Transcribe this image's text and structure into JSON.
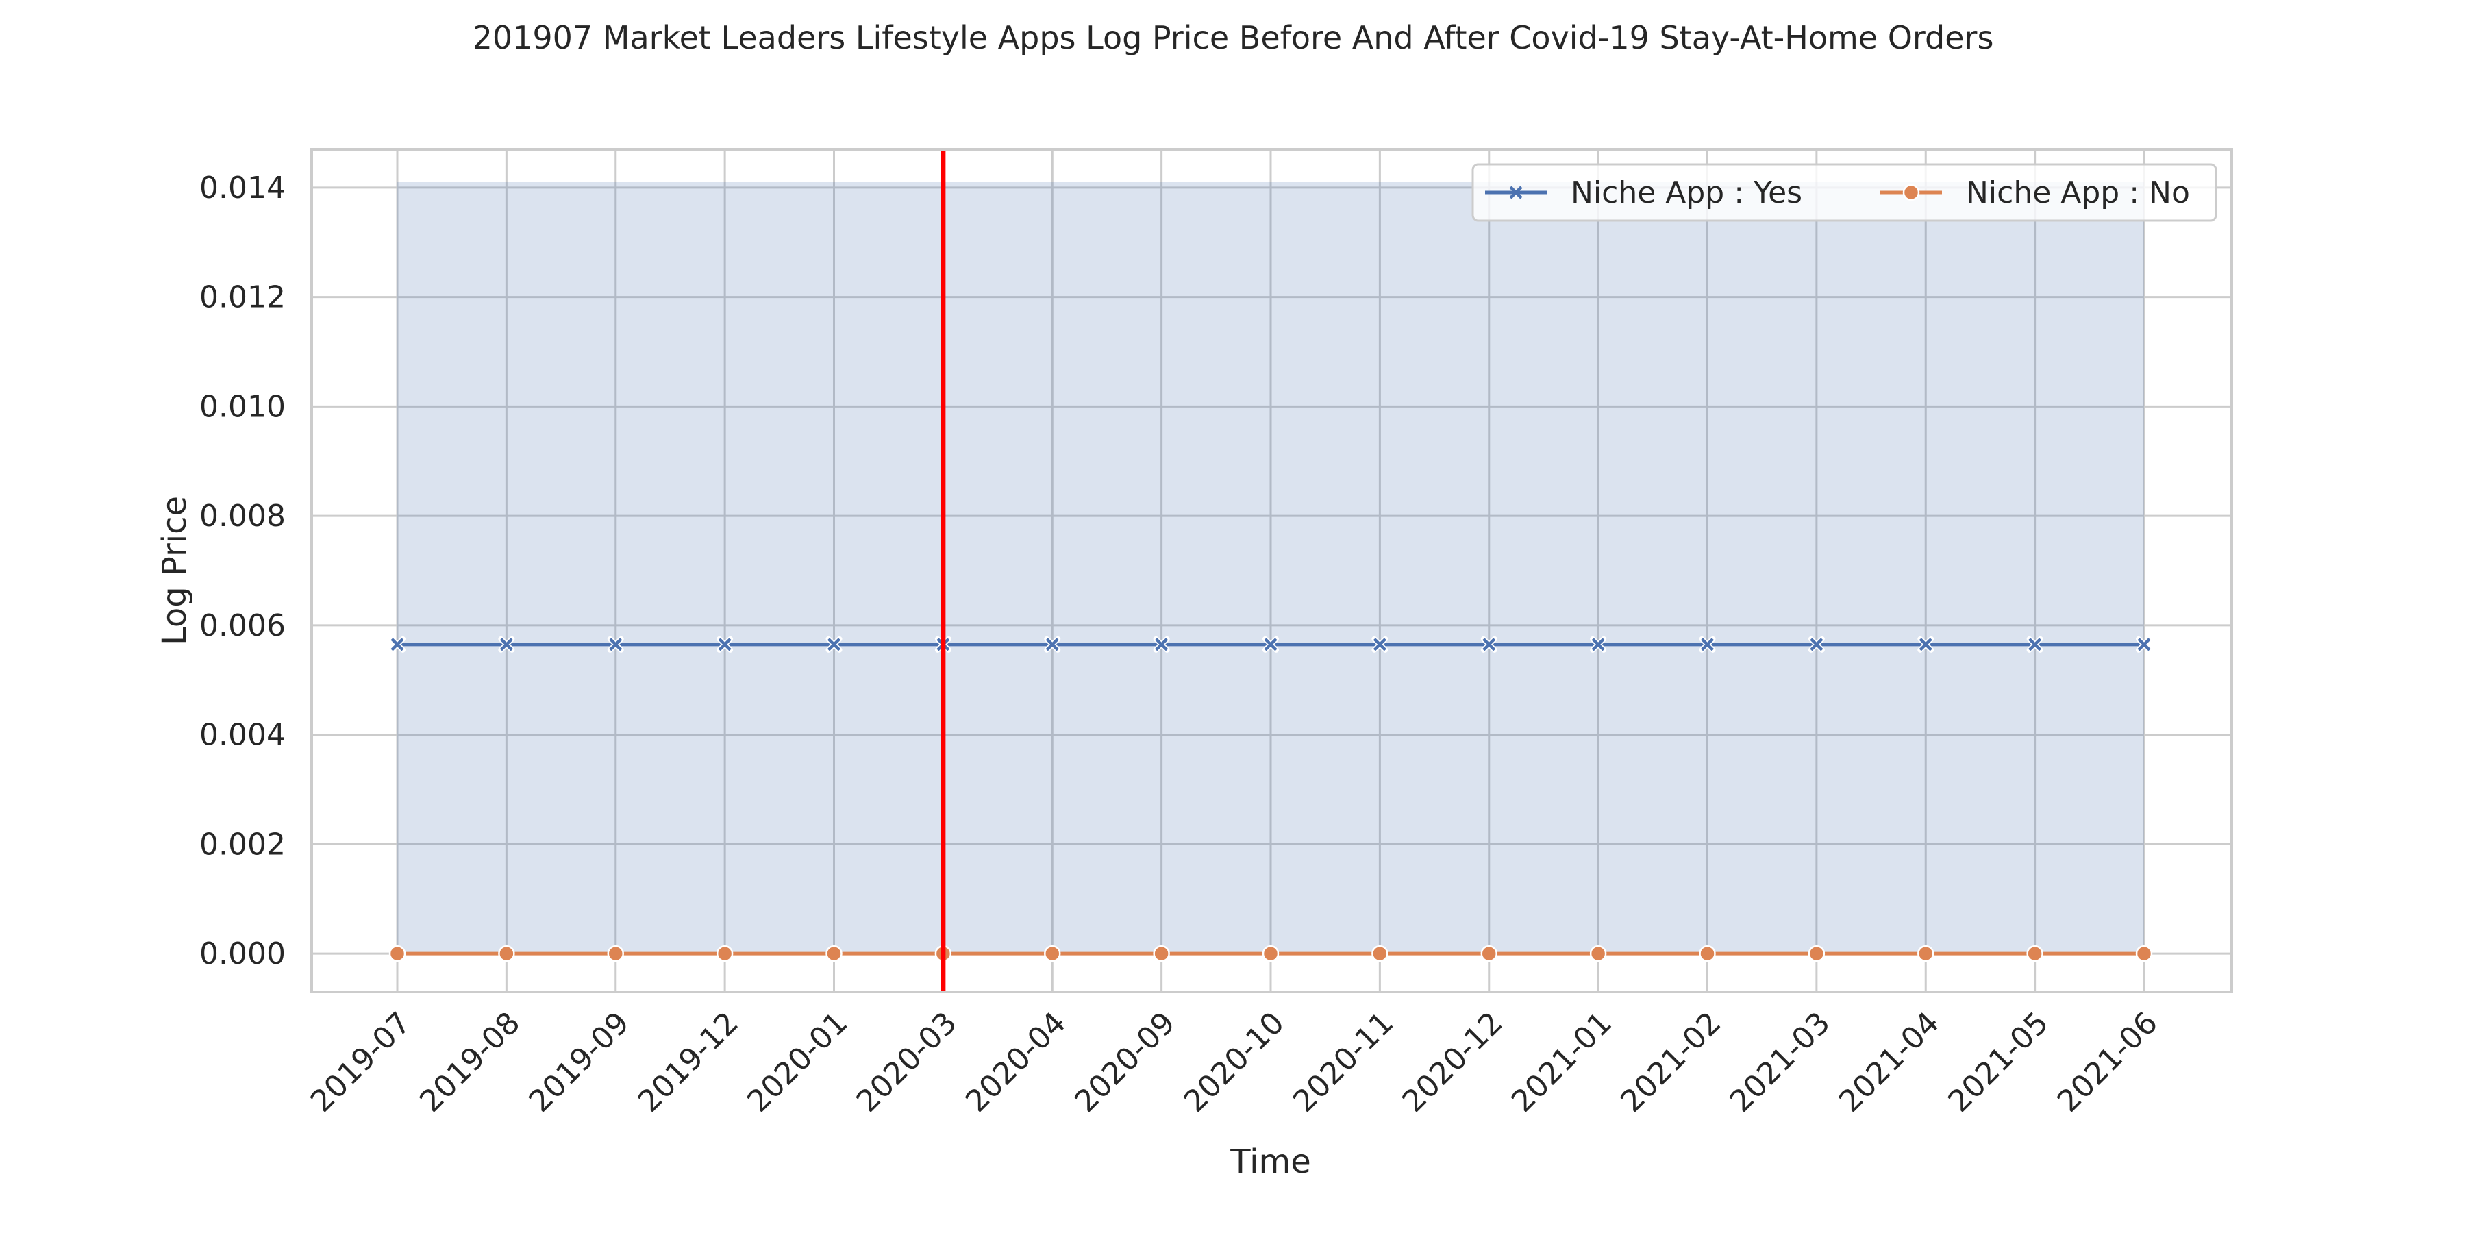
{
  "chart_data": {
    "type": "line",
    "title": "201907 Market Leaders Lifestyle Apps Log Price Before And After Covid-19 Stay-At-Home Orders",
    "xlabel": "Time",
    "ylabel": "Log Price",
    "categories": [
      "2019-07",
      "2019-08",
      "2019-09",
      "2019-12",
      "2020-01",
      "2020-03",
      "2020-04",
      "2020-09",
      "2020-10",
      "2020-11",
      "2020-12",
      "2021-01",
      "2021-02",
      "2021-03",
      "2021-04",
      "2021-05",
      "2021-06"
    ],
    "ylim": [
      -0.0007,
      0.0147
    ],
    "yticks": [
      "0.000",
      "0.002",
      "0.004",
      "0.006",
      "0.008",
      "0.010",
      "0.012",
      "0.014"
    ],
    "grid": true,
    "legend_placement": "top-right",
    "series": [
      {
        "name": "Niche App : Yes",
        "marker": "x",
        "color": "#4c72b0",
        "values": [
          0.00565,
          0.00565,
          0.00565,
          0.00565,
          0.00565,
          0.00565,
          0.00565,
          0.00565,
          0.00565,
          0.00565,
          0.00565,
          0.00565,
          0.00565,
          0.00565,
          0.00565,
          0.00565,
          0.00565
        ],
        "ci_lower": [
          0,
          0,
          0,
          0,
          0,
          0,
          0,
          0,
          0,
          0,
          0,
          0,
          0,
          0,
          0,
          0,
          0
        ],
        "ci_upper": [
          0.0141,
          0.0141,
          0.0141,
          0.0141,
          0.0141,
          0.0141,
          0.0141,
          0.0141,
          0.0141,
          0.0141,
          0.0141,
          0.0141,
          0.0141,
          0.0141,
          0.0141,
          0.0141,
          0.0141
        ]
      },
      {
        "name": "Niche App : No",
        "marker": "circle",
        "color": "#dd8452",
        "values": [
          0,
          0,
          0,
          0,
          0,
          0,
          0,
          0,
          0,
          0,
          0,
          0,
          0,
          0,
          0,
          0,
          0
        ]
      }
    ],
    "vertical_line": {
      "x": "2020-03",
      "color": "#ff0000"
    }
  }
}
